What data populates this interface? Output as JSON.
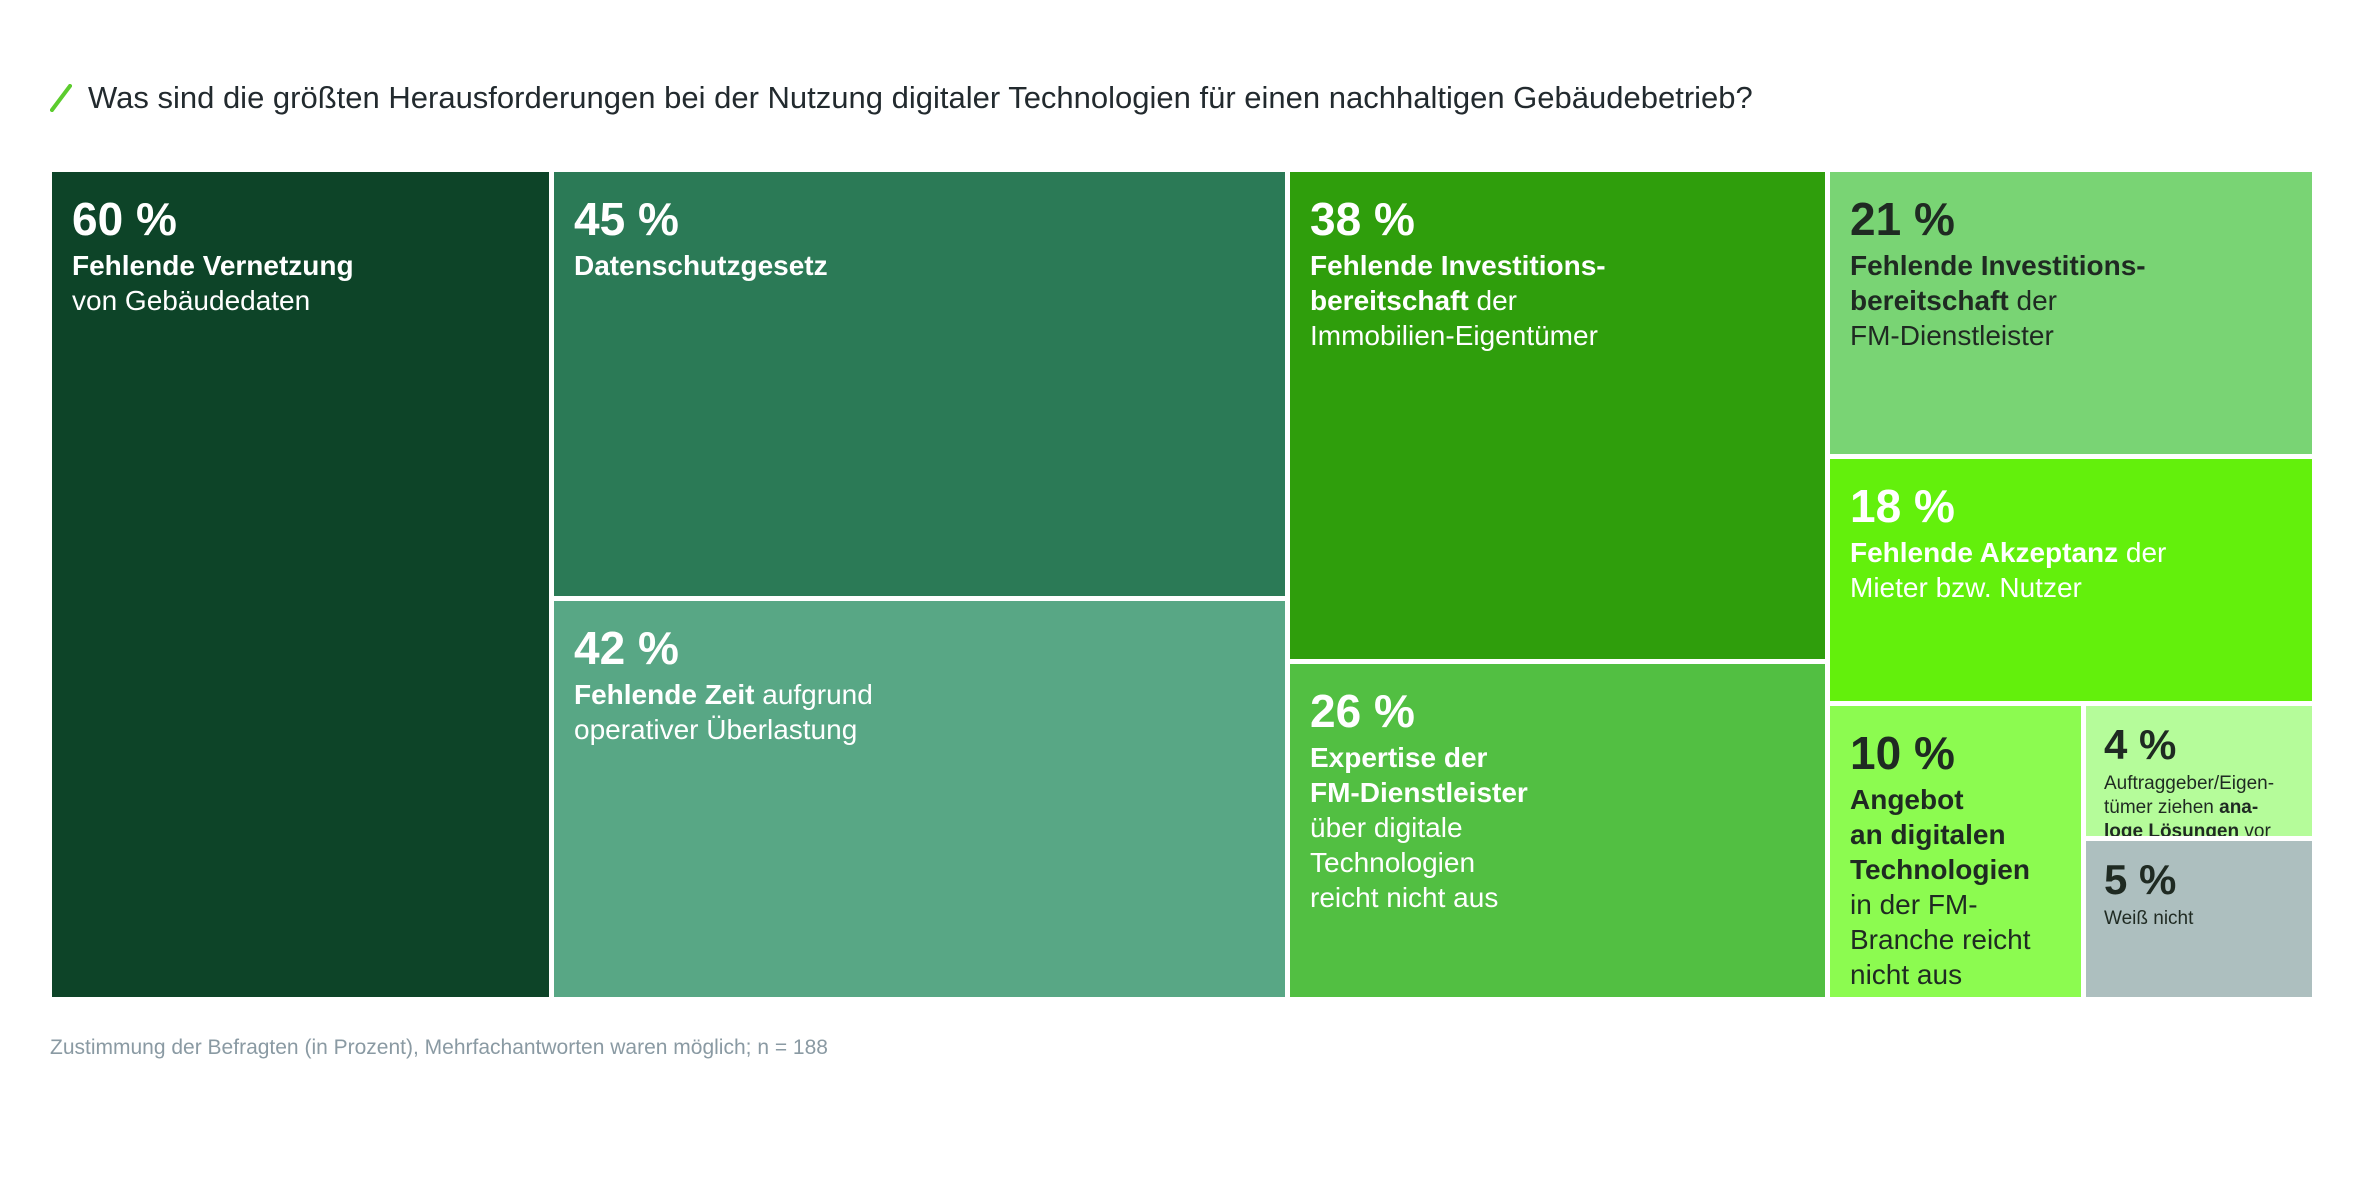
{
  "title": "Was sind die größten Herausforderungen bei der Nutzung digitaler Technologien für einen nachhaltigen Gebäudebetrieb?",
  "note": "Zustimmung der Befragten (in Prozent), Mehrfachantworten waren möglich; n = 188",
  "colors": {
    "accent": "#5ccc2e"
  },
  "chart_data": {
    "type": "treemap",
    "title": "Was sind die größten Herausforderungen bei der Nutzung digitaler Technologien für einen nachhaltigen Gebäudebetrieb?",
    "unit": "%",
    "n": 188,
    "items": [
      {
        "value": 60,
        "pct": "60 %",
        "label_parts": [
          [
            "b",
            "Fehlende Vernetzung"
          ],
          [
            "br",
            ""
          ],
          [
            "t",
            "von Gebäudedaten"
          ]
        ],
        "color": "#0d4428",
        "text": "light"
      },
      {
        "value": 45,
        "pct": "45 %",
        "label_parts": [
          [
            "b",
            "Datenschutzgesetz"
          ]
        ],
        "color": "#2b7a56",
        "text": "light"
      },
      {
        "value": 42,
        "pct": "42 %",
        "label_parts": [
          [
            "b",
            "Fehlende Zeit"
          ],
          [
            "t",
            " aufgrund"
          ],
          [
            "br",
            ""
          ],
          [
            "t",
            "operativer Überlastung"
          ]
        ],
        "color": "#58a785",
        "text": "light"
      },
      {
        "value": 38,
        "pct": "38 %",
        "label_parts": [
          [
            "b",
            "Fehlende Investitions-"
          ],
          [
            "br",
            ""
          ],
          [
            "b",
            "bereitschaft"
          ],
          [
            "t",
            " der"
          ],
          [
            "br",
            ""
          ],
          [
            "t",
            "Immobilien-Eigentümer"
          ]
        ],
        "color": "#2f9e0c",
        "text": "light"
      },
      {
        "value": 26,
        "pct": "26 %",
        "label_parts": [
          [
            "b",
            "Expertise der"
          ],
          [
            "br",
            ""
          ],
          [
            "b",
            "FM-Dienstleister"
          ],
          [
            "br",
            ""
          ],
          [
            "t",
            "über digitale"
          ],
          [
            "br",
            ""
          ],
          [
            "t",
            "Technologien"
          ],
          [
            "br",
            ""
          ],
          [
            "t",
            "reicht nicht aus"
          ]
        ],
        "color": "#52bf42",
        "text": "light"
      },
      {
        "value": 21,
        "pct": "21 %",
        "label_parts": [
          [
            "b",
            "Fehlende Investitions-"
          ],
          [
            "br",
            ""
          ],
          [
            "b",
            "bereitschaft"
          ],
          [
            "t",
            " der"
          ],
          [
            "br",
            ""
          ],
          [
            "t",
            "FM-Dienstleister"
          ]
        ],
        "color": "#79d474",
        "text": "dark"
      },
      {
        "value": 18,
        "pct": "18 %",
        "label_parts": [
          [
            "b",
            "Fehlende Akzeptanz"
          ],
          [
            "t",
            " der"
          ],
          [
            "br",
            ""
          ],
          [
            "t",
            "Mieter bzw. Nutzer"
          ]
        ],
        "color": "#63f00c",
        "text": "light"
      },
      {
        "value": 10,
        "pct": "10 %",
        "label_parts": [
          [
            "b",
            "Angebot"
          ],
          [
            "br",
            ""
          ],
          [
            "b",
            "an digitalen"
          ],
          [
            "br",
            ""
          ],
          [
            "b",
            "Technologien"
          ],
          [
            "br",
            ""
          ],
          [
            "t",
            "in der FM-"
          ],
          [
            "br",
            ""
          ],
          [
            "t",
            "Branche reicht"
          ],
          [
            "br",
            ""
          ],
          [
            "t",
            "nicht aus"
          ]
        ],
        "color": "#8cfb50",
        "text": "dark"
      },
      {
        "value": 4,
        "pct": "4 %",
        "label_parts": [
          [
            "t",
            "Auftraggeber/Eigen-"
          ],
          [
            "br",
            ""
          ],
          [
            "t",
            "tümer ziehen "
          ],
          [
            "b",
            "ana-"
          ],
          [
            "br",
            ""
          ],
          [
            "b",
            "loge Lösungen"
          ],
          [
            "t",
            " vor"
          ]
        ],
        "color": "#b5fc9a",
        "text": "dark",
        "small": true
      },
      {
        "value": 5,
        "pct": "5 %",
        "label_parts": [
          [
            "t",
            "Weiß nicht"
          ]
        ],
        "color": "#adbfbf",
        "text": "dark",
        "small": true
      }
    ]
  }
}
